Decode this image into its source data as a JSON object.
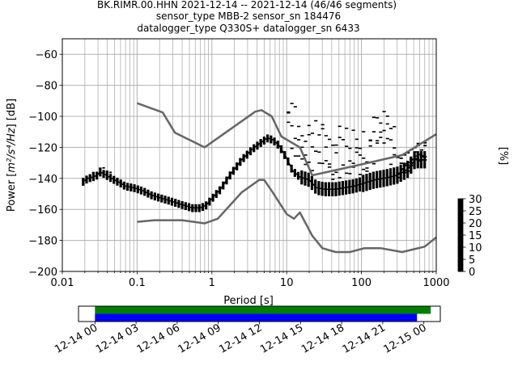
{
  "chart_data": [
    {
      "type": "heatmap",
      "title_lines": [
        "BK.RIMR.00.HHN   2021-12-14 -- 2021-12-14  (46/46 segments)",
        "sensor_type MBB-2 sensor_sn 184476",
        "datalogger_type Q330S+ datalogger_sn 6433"
      ],
      "xlabel": "Period [s]",
      "ylabel_main": "Power [",
      "ylabel_unit": "m²/s⁴/Hz",
      "ylabel_tail": "] [dB]",
      "xscale": "log",
      "xlim": [
        0.01,
        1000
      ],
      "ylim": [
        -200,
        -50
      ],
      "xtick_labels": [
        {
          "v": 0.01,
          "label": "0.01"
        },
        {
          "v": 0.1,
          "label": "0.1"
        },
        {
          "v": 1,
          "label": "1"
        },
        {
          "v": 10,
          "label": "10"
        },
        {
          "v": 100,
          "label": "100"
        },
        {
          "v": 1000,
          "label": "1000"
        }
      ],
      "ytick_labels": [
        {
          "v": -60,
          "label": "−60"
        },
        {
          "v": -80,
          "label": "−80"
        },
        {
          "v": -100,
          "label": "−100"
        },
        {
          "v": -120,
          "label": "−120"
        },
        {
          "v": -140,
          "label": "−140"
        },
        {
          "v": -160,
          "label": "−160"
        },
        {
          "v": -180,
          "label": "−180"
        },
        {
          "v": -200,
          "label": "−200"
        }
      ],
      "grid": true,
      "mean_curve": [
        [
          0.019,
          -142
        ],
        [
          0.022,
          -140
        ],
        [
          0.026,
          -139
        ],
        [
          0.029,
          -138
        ],
        [
          0.032,
          -136
        ],
        [
          0.036,
          -137
        ],
        [
          0.042,
          -139
        ],
        [
          0.05,
          -141
        ],
        [
          0.06,
          -143
        ],
        [
          0.07,
          -145
        ],
        [
          0.09,
          -146
        ],
        [
          0.12,
          -148
        ],
        [
          0.16,
          -151
        ],
        [
          0.22,
          -153
        ],
        [
          0.3,
          -155
        ],
        [
          0.4,
          -157
        ],
        [
          0.55,
          -159
        ],
        [
          0.7,
          -159
        ],
        [
          0.85,
          -157
        ],
        [
          1.0,
          -153
        ],
        [
          1.3,
          -147
        ],
        [
          1.8,
          -137
        ],
        [
          2.5,
          -128
        ],
        [
          3.5,
          -121
        ],
        [
          4.5,
          -117
        ],
        [
          5.5,
          -114
        ],
        [
          6.5,
          -115
        ],
        [
          8.0,
          -119
        ],
        [
          10,
          -127
        ],
        [
          12,
          -135
        ],
        [
          15,
          -139
        ],
        [
          20,
          -141
        ],
        [
          25,
          -146
        ],
        [
          32,
          -147
        ],
        [
          45,
          -147
        ],
        [
          60,
          -146
        ],
        [
          80,
          -145
        ],
        [
          110,
          -143
        ],
        [
          150,
          -141
        ],
        [
          200,
          -140
        ],
        [
          300,
          -138
        ],
        [
          420,
          -134
        ],
        [
          520,
          -128
        ],
        [
          700,
          -128
        ]
      ],
      "nhnm": [
        [
          0.1,
          -168
        ],
        [
          0.17,
          -167
        ],
        [
          0.4,
          -167
        ],
        [
          0.8,
          -169
        ],
        [
          1.2,
          -166
        ],
        [
          2.5,
          -149
        ],
        [
          4.3,
          -141
        ],
        [
          5.0,
          -141
        ],
        [
          6.5,
          -149
        ],
        [
          10,
          -163
        ],
        [
          12.5,
          -166
        ],
        [
          15,
          -162
        ],
        [
          22,
          -177
        ],
        [
          30,
          -185
        ],
        [
          45,
          -187.5
        ],
        [
          70,
          -187.5
        ],
        [
          110,
          -185
        ],
        [
          180,
          -185
        ],
        [
          350,
          -187.5
        ],
        [
          700,
          -184
        ],
        [
          1000,
          -178
        ]
      ],
      "nlnm": [
        [
          0.1,
          -91.5
        ],
        [
          0.22,
          -97.5
        ],
        [
          0.32,
          -110.5
        ],
        [
          0.8,
          -120
        ],
        [
          3.8,
          -97
        ],
        [
          4.6,
          -96
        ],
        [
          6.3,
          -100
        ],
        [
          8.5,
          -113
        ],
        [
          15,
          -120
        ],
        [
          22,
          -138
        ],
        [
          100,
          -131
        ],
        [
          350,
          -125
        ],
        [
          1000,
          -111.5
        ]
      ],
      "colorbar": {
        "label": "[%]",
        "min": 0,
        "max": 30,
        "ticks": [
          0,
          5,
          10,
          15,
          20,
          25,
          30
        ],
        "tick_labels": [
          "0",
          "5",
          "10",
          "15",
          "20",
          "25",
          "30"
        ]
      }
    },
    {
      "type": "timeline",
      "tick_labels": [
        "12-14 00",
        "12-14 03",
        "12-14 06",
        "12-14 09",
        "12-14 12",
        "12-14 15",
        "12-14 18",
        "12-14 21",
        "12-15 00"
      ],
      "tick_hours": [
        0,
        3,
        6,
        9,
        12,
        15,
        18,
        21,
        24
      ],
      "range_hours": [
        -1.2,
        25.2
      ],
      "bars": [
        {
          "start_hour": 0,
          "end_hour": 24.5,
          "color": "#008000"
        },
        {
          "start_hour": 0,
          "end_hour": 23.5,
          "color": "#0000ff"
        }
      ]
    }
  ]
}
